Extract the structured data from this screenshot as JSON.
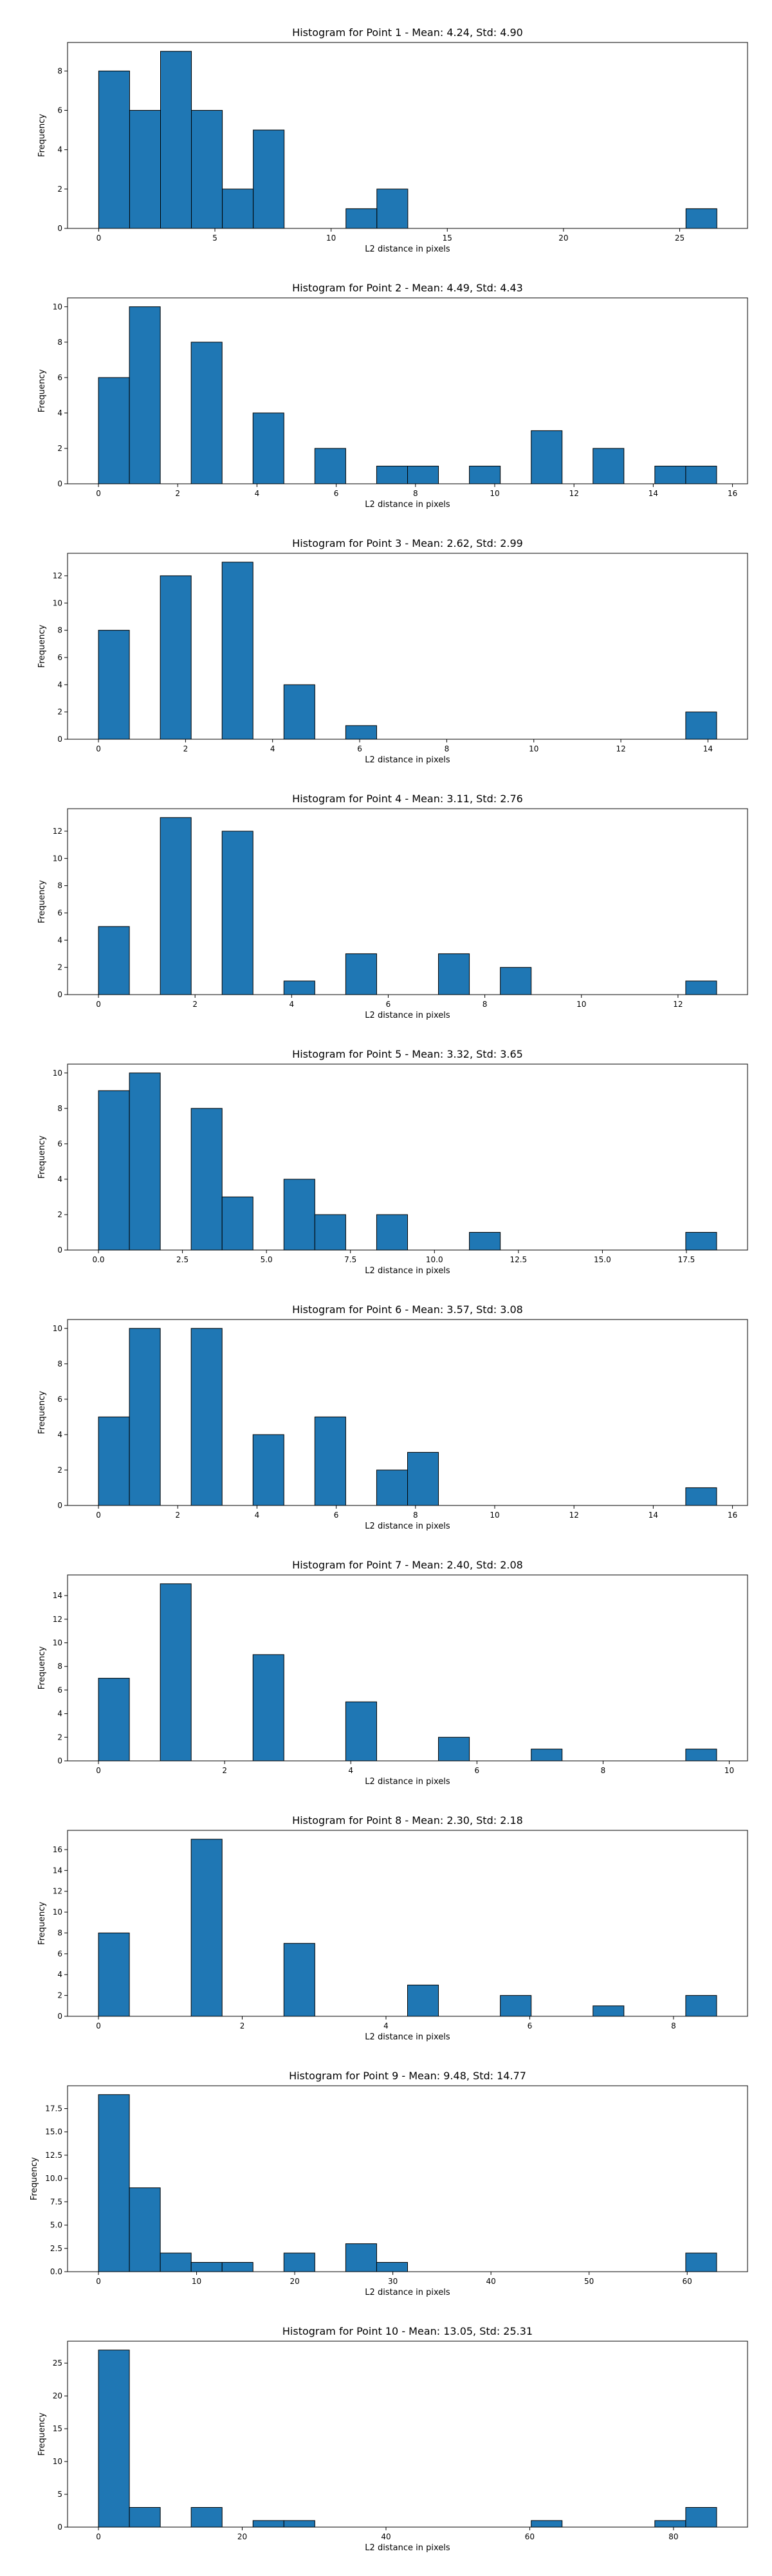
{
  "chart_data": [
    {
      "type": "bar",
      "title": "Histogram for Point 1 - Mean: 4.24, Std: 4.90",
      "xlabel": "L2 distance in pixels",
      "ylabel": "Frequency",
      "xlim": [
        -1.34,
        27.92
      ],
      "ylim": [
        0,
        9.45
      ],
      "xticks": [
        0,
        5,
        10,
        15,
        20,
        25
      ],
      "yticks": [
        0,
        2,
        4,
        6,
        8
      ],
      "bins": [
        [
          0.0,
          1.33,
          8
        ],
        [
          1.33,
          2.66,
          6
        ],
        [
          2.66,
          3.99,
          9
        ],
        [
          3.99,
          5.32,
          6
        ],
        [
          5.32,
          6.65,
          2
        ],
        [
          6.65,
          7.98,
          5
        ],
        [
          10.64,
          11.97,
          1
        ],
        [
          11.97,
          13.3,
          2
        ],
        [
          25.27,
          26.6,
          1
        ]
      ]
    },
    {
      "type": "bar",
      "title": "Histogram for Point 2 - Mean: 4.49, Std: 4.43",
      "xlabel": "L2 distance in pixels",
      "ylabel": "Frequency",
      "xlim": [
        -0.78,
        16.38
      ],
      "ylim": [
        0,
        10.5
      ],
      "xticks": [
        0,
        2,
        4,
        6,
        8,
        10,
        12,
        14,
        16
      ],
      "yticks": [
        0,
        2,
        4,
        6,
        8,
        10
      ],
      "bins": [
        [
          0.0,
          0.78,
          6
        ],
        [
          0.78,
          1.56,
          10
        ],
        [
          2.34,
          3.12,
          8
        ],
        [
          3.9,
          4.68,
          4
        ],
        [
          5.46,
          6.24,
          2
        ],
        [
          7.02,
          7.8,
          1
        ],
        [
          7.8,
          8.58,
          1
        ],
        [
          9.36,
          10.14,
          1
        ],
        [
          10.92,
          11.7,
          3
        ],
        [
          12.48,
          13.26,
          2
        ],
        [
          14.04,
          14.82,
          1
        ],
        [
          14.82,
          15.6,
          1
        ]
      ]
    },
    {
      "type": "bar",
      "title": "Histogram for Point 3 - Mean: 2.62, Std: 2.99",
      "xlabel": "L2 distance in pixels",
      "ylabel": "Frequency",
      "xlim": [
        -0.71,
        14.91
      ],
      "ylim": [
        0,
        13.65
      ],
      "xticks": [
        0,
        2,
        4,
        6,
        8,
        10,
        12,
        14
      ],
      "yticks": [
        0,
        2,
        4,
        6,
        8,
        10,
        12
      ],
      "bins": [
        [
          0.0,
          0.71,
          8
        ],
        [
          1.42,
          2.13,
          12
        ],
        [
          2.84,
          3.55,
          13
        ],
        [
          4.26,
          4.97,
          4
        ],
        [
          5.68,
          6.39,
          1
        ],
        [
          13.49,
          14.2,
          2
        ]
      ]
    },
    {
      "type": "bar",
      "title": "Histogram for Point 4 - Mean: 3.11, Std: 2.76",
      "xlabel": "L2 distance in pixels",
      "ylabel": "Frequency",
      "xlim": [
        -0.64,
        13.44
      ],
      "ylim": [
        0,
        13.65
      ],
      "xticks": [
        0,
        2,
        4,
        6,
        8,
        10,
        12
      ],
      "yticks": [
        0,
        2,
        4,
        6,
        8,
        10,
        12
      ],
      "bins": [
        [
          0.0,
          0.64,
          5
        ],
        [
          1.28,
          1.92,
          13
        ],
        [
          2.56,
          3.2,
          12
        ],
        [
          3.84,
          4.48,
          1
        ],
        [
          5.12,
          5.76,
          3
        ],
        [
          7.04,
          7.68,
          3
        ],
        [
          8.32,
          8.96,
          2
        ],
        [
          12.16,
          12.8,
          1
        ]
      ]
    },
    {
      "type": "bar",
      "title": "Histogram for Point 5 - Mean: 3.32, Std: 3.65",
      "xlabel": "L2 distance in pixels",
      "ylabel": "Frequency",
      "xlim": [
        -0.92,
        19.32
      ],
      "ylim": [
        0,
        10.5
      ],
      "xticks": [
        0.0,
        2.5,
        5.0,
        7.5,
        10.0,
        12.5,
        15.0,
        17.5
      ],
      "xtick_labels": [
        "0.0",
        "2.5",
        "5.0",
        "7.5",
        "10.0",
        "12.5",
        "15.0",
        "17.5"
      ],
      "yticks": [
        0,
        2,
        4,
        6,
        8,
        10
      ],
      "bins": [
        [
          0.0,
          0.92,
          9
        ],
        [
          0.92,
          1.84,
          10
        ],
        [
          2.76,
          3.68,
          8
        ],
        [
          3.68,
          4.6,
          3
        ],
        [
          5.52,
          6.44,
          4
        ],
        [
          6.44,
          7.36,
          2
        ],
        [
          8.28,
          9.2,
          2
        ],
        [
          11.04,
          11.96,
          1
        ],
        [
          17.48,
          18.4,
          1
        ]
      ]
    },
    {
      "type": "bar",
      "title": "Histogram for Point 6 - Mean: 3.57, Std: 3.08",
      "xlabel": "L2 distance in pixels",
      "ylabel": "Frequency",
      "xlim": [
        -0.78,
        16.38
      ],
      "ylim": [
        0,
        10.5
      ],
      "xticks": [
        0,
        2,
        4,
        6,
        8,
        10,
        12,
        14,
        16
      ],
      "yticks": [
        0,
        2,
        4,
        6,
        8,
        10
      ],
      "bins": [
        [
          0.0,
          0.78,
          5
        ],
        [
          0.78,
          1.56,
          10
        ],
        [
          2.34,
          3.12,
          10
        ],
        [
          3.9,
          4.68,
          4
        ],
        [
          5.46,
          6.24,
          5
        ],
        [
          7.02,
          7.8,
          2
        ],
        [
          7.8,
          8.58,
          3
        ],
        [
          14.82,
          15.6,
          1
        ]
      ]
    },
    {
      "type": "bar",
      "title": "Histogram for Point 7 - Mean: 2.40, Std: 2.08",
      "xlabel": "L2 distance in pixels",
      "ylabel": "Frequency",
      "xlim": [
        -0.49,
        10.29
      ],
      "ylim": [
        0,
        15.75
      ],
      "xticks": [
        0,
        2,
        4,
        6,
        8,
        10
      ],
      "yticks": [
        0,
        2,
        4,
        6,
        8,
        10,
        12,
        14
      ],
      "bins": [
        [
          0.0,
          0.49,
          7
        ],
        [
          0.98,
          1.47,
          15
        ],
        [
          2.45,
          2.94,
          9
        ],
        [
          3.92,
          4.41,
          5
        ],
        [
          5.39,
          5.88,
          2
        ],
        [
          6.86,
          7.35,
          1
        ],
        [
          9.31,
          9.8,
          1
        ]
      ]
    },
    {
      "type": "bar",
      "title": "Histogram for Point 8 - Mean: 2.30, Std: 2.18",
      "xlabel": "L2 distance in pixels",
      "ylabel": "Frequency",
      "xlim": [
        -0.43,
        9.03
      ],
      "ylim": [
        0,
        17.85
      ],
      "xticks": [
        0,
        2,
        4,
        6,
        8
      ],
      "yticks": [
        0,
        2,
        4,
        6,
        8,
        10,
        12,
        14,
        16
      ],
      "bins": [
        [
          0.0,
          0.43,
          8
        ],
        [
          1.29,
          1.72,
          17
        ],
        [
          2.58,
          3.01,
          7
        ],
        [
          4.3,
          4.73,
          3
        ],
        [
          5.59,
          6.02,
          2
        ],
        [
          6.88,
          7.31,
          1
        ],
        [
          8.17,
          8.6,
          2
        ]
      ]
    },
    {
      "type": "bar",
      "title": "Histogram for Point 9 - Mean: 9.48, Std: 14.77",
      "xlabel": "L2 distance in pixels",
      "ylabel": "Frequency",
      "xlim": [
        -3.15,
        66.15
      ],
      "ylim": [
        0,
        19.95
      ],
      "xticks": [
        0,
        10,
        20,
        30,
        40,
        50,
        60
      ],
      "yticks": [
        0.0,
        2.5,
        5.0,
        7.5,
        10.0,
        12.5,
        15.0,
        17.5
      ],
      "ytick_labels": [
        "0.0",
        "2.5",
        "5.0",
        "7.5",
        "10.0",
        "12.5",
        "15.0",
        "17.5"
      ],
      "bins": [
        [
          0.0,
          3.15,
          19
        ],
        [
          3.15,
          6.3,
          9
        ],
        [
          6.3,
          9.45,
          2
        ],
        [
          9.45,
          12.6,
          1
        ],
        [
          12.6,
          15.75,
          1
        ],
        [
          18.9,
          22.05,
          2
        ],
        [
          25.2,
          28.35,
          3
        ],
        [
          28.35,
          31.5,
          1
        ],
        [
          59.85,
          63.0,
          2
        ]
      ]
    },
    {
      "type": "bar",
      "title": "Histogram for Point 10 - Mean: 13.05, Std: 25.31",
      "xlabel": "L2 distance in pixels",
      "ylabel": "Frequency",
      "xlim": [
        -4.3,
        90.3
      ],
      "ylim": [
        0,
        28.35
      ],
      "xticks": [
        0,
        20,
        40,
        60,
        80
      ],
      "yticks": [
        0,
        5,
        10,
        15,
        20,
        25
      ],
      "bins": [
        [
          0.0,
          4.3,
          27
        ],
        [
          4.3,
          8.6,
          3
        ],
        [
          12.9,
          17.2,
          3
        ],
        [
          21.5,
          25.8,
          1
        ],
        [
          25.8,
          30.1,
          1
        ],
        [
          60.2,
          64.5,
          1
        ],
        [
          77.4,
          81.7,
          1
        ],
        [
          81.7,
          86.0,
          3
        ]
      ]
    }
  ]
}
